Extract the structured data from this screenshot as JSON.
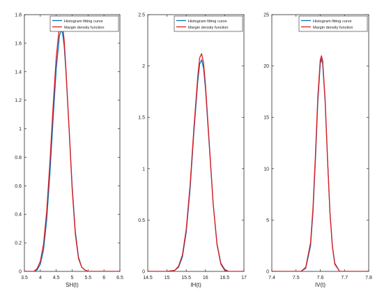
{
  "chart_data": [
    {
      "type": "line",
      "xlabel": "SH(t)",
      "ylabel": "",
      "xlim": [
        3.5,
        6.5
      ],
      "ylim": [
        0,
        1.8
      ],
      "xticks": [
        3.5,
        4,
        4.5,
        5,
        5.5,
        6,
        6.5
      ],
      "xtick_labels": [
        "3.5",
        "4",
        "4.5",
        "5",
        "5.5",
        "6",
        "6.5"
      ],
      "yticks": [
        0,
        0.2,
        0.4,
        0.6,
        0.8,
        1,
        1.2,
        1.4,
        1.6,
        1.8
      ],
      "ytick_labels": [
        "0",
        "0.2",
        "0.4",
        "0.6",
        "0.8",
        "1",
        "1.2",
        "1.4",
        "1.6",
        "1.8"
      ],
      "grid": false,
      "legend_position": "top-right",
      "series": [
        {
          "name": "Histogram fitting curve",
          "color": "#0072BD",
          "x": [
            3.5,
            3.8,
            3.9,
            4.0,
            4.1,
            4.2,
            4.3,
            4.4,
            4.5,
            4.6,
            4.65,
            4.7,
            4.75,
            4.8,
            4.9,
            5.0,
            5.1,
            5.2,
            5.3,
            5.4,
            5.5,
            6.0,
            6.5
          ],
          "y": [
            0,
            0,
            0.01,
            0.05,
            0.15,
            0.36,
            0.68,
            1.06,
            1.42,
            1.65,
            1.69,
            1.67,
            1.58,
            1.42,
            1.02,
            0.6,
            0.28,
            0.1,
            0.03,
            0.01,
            0,
            0,
            0
          ]
        },
        {
          "name": "Margin density function",
          "color": "#E31A1C",
          "x": [
            3.5,
            3.8,
            3.9,
            4.0,
            4.1,
            4.2,
            4.3,
            4.4,
            4.5,
            4.6,
            4.65,
            4.7,
            4.75,
            4.8,
            4.9,
            5.0,
            5.1,
            5.2,
            5.3,
            5.4,
            5.5,
            6.0,
            6.5
          ],
          "y": [
            0,
            0,
            0.02,
            0.07,
            0.19,
            0.42,
            0.76,
            1.15,
            1.5,
            1.72,
            1.76,
            1.73,
            1.62,
            1.44,
            1.02,
            0.58,
            0.26,
            0.09,
            0.03,
            0.01,
            0,
            0,
            0
          ]
        }
      ]
    },
    {
      "type": "line",
      "xlabel": "IH(t)",
      "ylabel": "",
      "xlim": [
        14.5,
        17
      ],
      "ylim": [
        0,
        2.5
      ],
      "xticks": [
        14.5,
        15,
        15.5,
        16,
        16.5,
        17
      ],
      "xtick_labels": [
        "14.5",
        "15",
        "15.5",
        "16",
        "16.5",
        "17"
      ],
      "yticks": [
        0,
        0.5,
        1,
        1.5,
        2,
        2.5
      ],
      "ytick_labels": [
        "0",
        "0.5",
        "1",
        "1.5",
        "2",
        "2.5"
      ],
      "grid": false,
      "legend_position": "top-right",
      "series": [
        {
          "name": "Histogram fitting curve",
          "color": "#0072BD",
          "x": [
            14.5,
            15.0,
            15.2,
            15.3,
            15.4,
            15.5,
            15.6,
            15.7,
            15.8,
            15.85,
            15.9,
            15.95,
            16.0,
            16.1,
            16.2,
            16.3,
            16.4,
            16.5,
            16.6,
            17.0
          ],
          "y": [
            0,
            0,
            0.01,
            0.04,
            0.14,
            0.38,
            0.8,
            1.36,
            1.85,
            2.02,
            2.06,
            1.98,
            1.78,
            1.22,
            0.66,
            0.27,
            0.08,
            0.02,
            0,
            0
          ]
        },
        {
          "name": "Margin density function",
          "color": "#E31A1C",
          "x": [
            14.5,
            15.0,
            15.2,
            15.3,
            15.4,
            15.5,
            15.6,
            15.7,
            15.8,
            15.85,
            15.9,
            15.95,
            16.0,
            16.1,
            16.2,
            16.3,
            16.4,
            16.5,
            16.6,
            17.0
          ],
          "y": [
            0,
            0,
            0.01,
            0.05,
            0.16,
            0.41,
            0.84,
            1.4,
            1.9,
            2.08,
            2.12,
            2.03,
            1.82,
            1.24,
            0.66,
            0.26,
            0.07,
            0.01,
            0,
            0
          ]
        }
      ]
    },
    {
      "type": "line",
      "xlabel": "IV(t)",
      "ylabel": "",
      "xlim": [
        7.4,
        7.8
      ],
      "ylim": [
        0,
        25
      ],
      "xticks": [
        7.4,
        7.5,
        7.6,
        7.7,
        7.8
      ],
      "xtick_labels": [
        "7.4",
        "7.5",
        "7.6",
        "7.7",
        "7.8"
      ],
      "yticks": [
        0,
        5,
        10,
        15,
        20,
        25
      ],
      "ytick_labels": [
        "0",
        "5",
        "10",
        "15",
        "20",
        "25"
      ],
      "grid": false,
      "legend_position": "top-right",
      "series": [
        {
          "name": "Histogram fitting curve",
          "color": "#0072BD",
          "x": [
            7.4,
            7.52,
            7.54,
            7.56,
            7.57,
            7.58,
            7.59,
            7.6,
            7.605,
            7.61,
            7.62,
            7.63,
            7.64,
            7.65,
            7.66,
            7.68,
            7.8
          ],
          "y": [
            0,
            0,
            0.3,
            2.5,
            5.8,
            10.8,
            16.5,
            20.2,
            20.7,
            20.2,
            16.6,
            10.9,
            5.8,
            2.5,
            0.8,
            0,
            0
          ]
        },
        {
          "name": "Margin density function",
          "color": "#E31A1C",
          "x": [
            7.4,
            7.52,
            7.54,
            7.56,
            7.57,
            7.58,
            7.59,
            7.6,
            7.605,
            7.61,
            7.62,
            7.63,
            7.64,
            7.65,
            7.66,
            7.68,
            7.8
          ],
          "y": [
            0,
            0,
            0.4,
            2.8,
            6.2,
            11.3,
            17.0,
            20.6,
            21.0,
            20.5,
            16.8,
            11.0,
            5.7,
            2.4,
            0.7,
            0,
            0
          ]
        }
      ]
    }
  ]
}
